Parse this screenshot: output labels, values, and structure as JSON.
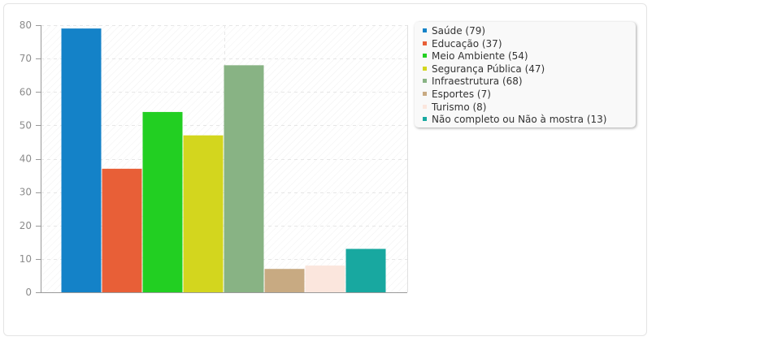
{
  "chart_data": {
    "type": "bar",
    "title": "",
    "xlabel": "",
    "ylabel": "",
    "ylim": [
      0,
      80
    ],
    "yticks": [
      0,
      10,
      20,
      30,
      40,
      50,
      60,
      70,
      80
    ],
    "grid": true,
    "legend_position": "right",
    "series": [
      {
        "name": "Saúde (79)",
        "value": 79,
        "color": "#1482c8"
      },
      {
        "name": "Educação (37)",
        "value": 37,
        "color": "#e85f37"
      },
      {
        "name": "Meio Ambiente (54)",
        "value": 54,
        "color": "#22cf22"
      },
      {
        "name": "Segurança Pública (47)",
        "value": 47,
        "color": "#d3d61e"
      },
      {
        "name": "Infraestrutura (68)",
        "value": 68,
        "color": "#88b384"
      },
      {
        "name": "Esportes (7)",
        "value": 7,
        "color": "#c8aa82"
      },
      {
        "name": "Turismo (8)",
        "value": 8,
        "color": "#fbe6dd"
      },
      {
        "name": "Não completo ou Não à mostra (13)",
        "value": 13,
        "color": "#18a8a0"
      }
    ]
  }
}
